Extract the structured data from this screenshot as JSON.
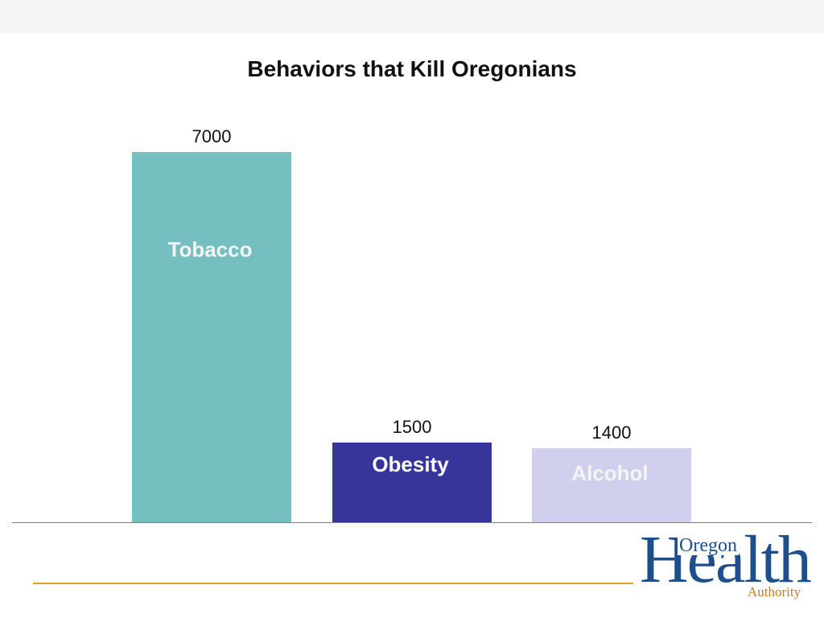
{
  "slide": {
    "title": "Behaviors that Kill Oregonians"
  },
  "logo": {
    "oregon": "Oregon",
    "health": "Health",
    "authority": "Authority",
    "primary_color": "#1c4f8c",
    "accent_color": "#c07c2a"
  },
  "footer": {
    "rule_color": "#e3a21a"
  },
  "chart_data": {
    "type": "bar",
    "title": "Behaviors that Kill Oregonians",
    "categories": [
      "Tobacco",
      "Obesity",
      "Alcohol"
    ],
    "values": [
      7000,
      1500,
      1400
    ],
    "colors": [
      "#75bfc1",
      "#37359a",
      "#d0cfee"
    ],
    "ylim": [
      0,
      7000
    ],
    "grid": false,
    "legend": "none",
    "data_labels": [
      "7000",
      "1500",
      "1400"
    ],
    "category_labels_inside_bars": true
  }
}
